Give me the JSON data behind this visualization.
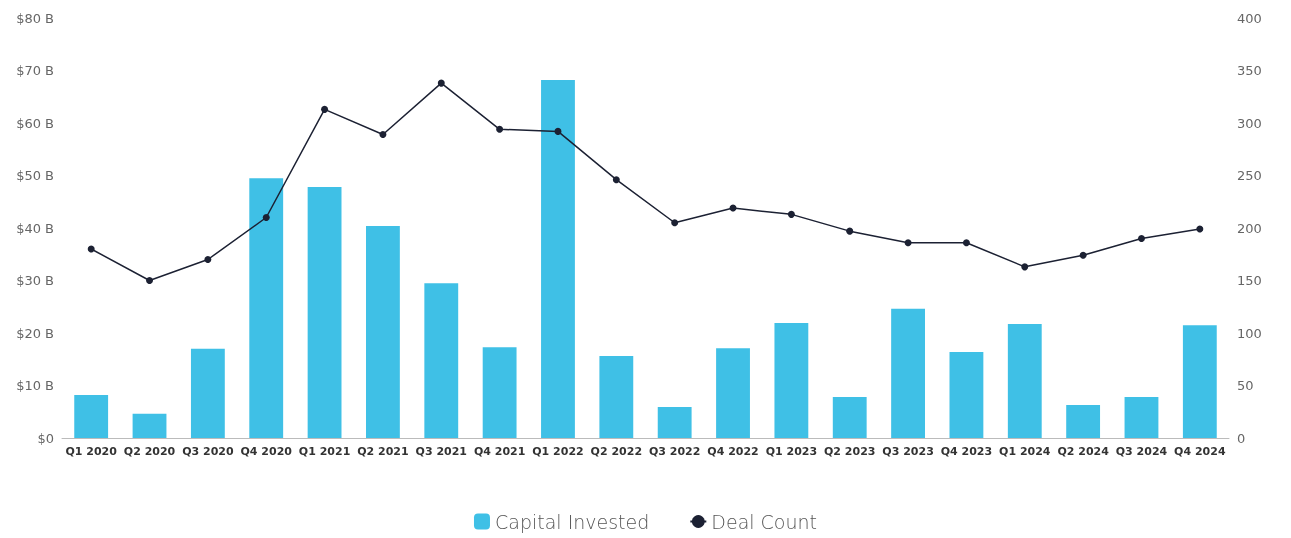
{
  "chart_data": {
    "type": "bar",
    "categories": [
      "Q1 2020",
      "Q2 2020",
      "Q3 2020",
      "Q4 2020",
      "Q1 2021",
      "Q2 2021",
      "Q3 2021",
      "Q4 2021",
      "Q1 2022",
      "Q2 2022",
      "Q3 2022",
      "Q4 2022",
      "Q1 2023",
      "Q2 2023",
      "Q3 2023",
      "Q4 2023",
      "Q1 2024",
      "Q2 2024",
      "Q3 2024",
      "Q4 2024"
    ],
    "series": [
      {
        "name": "Capital Invested",
        "color": "#3fc0e6",
        "values": [
          8.2,
          4.6,
          17.0,
          49.5,
          47.8,
          40.4,
          29.5,
          17.3,
          68.2,
          15.6,
          5.9,
          17.1,
          21.9,
          7.8,
          24.6,
          16.4,
          21.7,
          6.3,
          7.8,
          21.5
        ]
      },
      {
        "name": "Deal Count",
        "type": "line",
        "axis": "y2",
        "color": "#1c2133",
        "values": [
          180,
          150,
          170,
          210,
          313,
          289,
          338,
          294,
          292,
          246,
          205,
          219,
          213,
          197,
          186,
          186,
          163,
          174,
          190,
          199
        ]
      }
    ],
    "ylim": [
      0,
      80
    ],
    "yticks": [
      {
        "value": 0,
        "label": "$0"
      },
      {
        "value": 10,
        "label": "$10 B"
      },
      {
        "value": 20,
        "label": "$20 B"
      },
      {
        "value": 30,
        "label": "$30 B"
      },
      {
        "value": 40,
        "label": "$40 B"
      },
      {
        "value": 50,
        "label": "$50 B"
      },
      {
        "value": 60,
        "label": "$60 B"
      },
      {
        "value": 70,
        "label": "$70 B"
      },
      {
        "value": 80,
        "label": "$80 B"
      }
    ],
    "y2lim": [
      0,
      400
    ],
    "y2ticks": [
      0,
      50,
      100,
      150,
      200,
      250,
      300,
      350,
      400
    ],
    "grid": false,
    "legend": "bottom",
    "marker": "circle",
    "line_style": "solid"
  }
}
